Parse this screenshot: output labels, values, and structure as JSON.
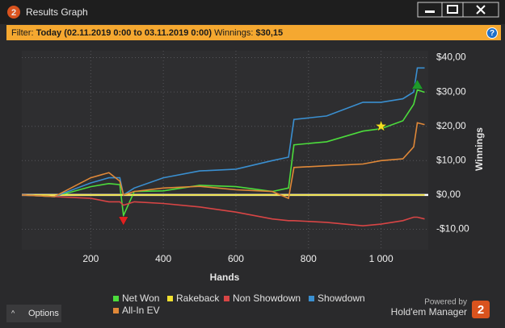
{
  "window": {
    "icon_label": "2",
    "title": "Results Graph"
  },
  "filter": {
    "label": "Filter:",
    "value": "Today (02.11.2019 0:00 to 03.11.2019 0:00)",
    "winnings_label": "Winnings:",
    "winnings_value": "$30,15",
    "help": "?"
  },
  "chart_data": {
    "type": "line",
    "x_label": "Hands",
    "y_label": "Winnings",
    "xlim": [
      10,
      1130
    ],
    "ylim": [
      -16,
      42
    ],
    "xticks": [
      200,
      400,
      600,
      800,
      {
        "value": 1000,
        "label": "1 000"
      }
    ],
    "yticks": [
      {
        "value": -10,
        "label": "-$10,00"
      },
      {
        "value": 0,
        "label": "$0,00"
      },
      {
        "value": 10,
        "label": "$10,00"
      },
      {
        "value": 20,
        "label": "$20,00"
      },
      {
        "value": 30,
        "label": "$30,00"
      },
      {
        "value": 40,
        "label": "$40,00"
      }
    ],
    "grid": true,
    "zero_line": true,
    "x": [
      10,
      100,
      200,
      250,
      280,
      290,
      320,
      400,
      500,
      600,
      700,
      745,
      760,
      850,
      950,
      1000,
      1060,
      1090,
      1100,
      1120
    ],
    "series": [
      {
        "name": "Net Won",
        "color": "#4cdc3c",
        "values": [
          0,
          -0.5,
          2.4,
          3.3,
          3,
          -6,
          1,
          1.2,
          2.8,
          2.4,
          1,
          2,
          14.6,
          15.5,
          18.6,
          19.3,
          21.6,
          26.4,
          30.6,
          29.9
        ]
      },
      {
        "name": "Rakeback",
        "color": "#f0e030",
        "values": [
          0,
          0,
          0,
          0,
          0,
          0,
          0,
          0,
          0,
          0,
          0,
          0,
          0,
          0,
          0,
          0,
          0,
          0,
          0,
          0
        ]
      },
      {
        "name": "Non Showdown",
        "color": "#d84545",
        "values": [
          0,
          -0.5,
          -1,
          -2,
          -2,
          -3,
          -2,
          -2.5,
          -3.5,
          -5,
          -7,
          -7.5,
          -7.5,
          -8,
          -9,
          -8.5,
          -7.5,
          -6.5,
          -6.5,
          -7
        ]
      },
      {
        "name": "Showdown",
        "color": "#3a8fd0",
        "values": [
          0,
          -0.5,
          3.5,
          5,
          5,
          0,
          2,
          5,
          7,
          7.5,
          10,
          11,
          22,
          23,
          27,
          27,
          28,
          30,
          37,
          37
        ]
      },
      {
        "name": "All-In EV",
        "color": "#e08838",
        "values": [
          0,
          -0.5,
          5,
          6.5,
          4,
          0,
          1,
          2,
          2.5,
          1.5,
          1,
          -1,
          8,
          8.5,
          9,
          10,
          10.5,
          14,
          21,
          20.5
        ]
      }
    ],
    "markers": [
      {
        "x": 290,
        "y": -7.5,
        "shape": "down",
        "color": "#e02020"
      },
      {
        "x": 1000,
        "y": 20,
        "shape": "star",
        "color": "#f5e020"
      },
      {
        "x": 1100,
        "y": 32,
        "shape": "up",
        "color": "#1e9a2a"
      }
    ]
  },
  "footer": {
    "options": "Options",
    "powered_by": "Powered by",
    "brand": "Hold'em Manager",
    "brand_badge": "2"
  }
}
